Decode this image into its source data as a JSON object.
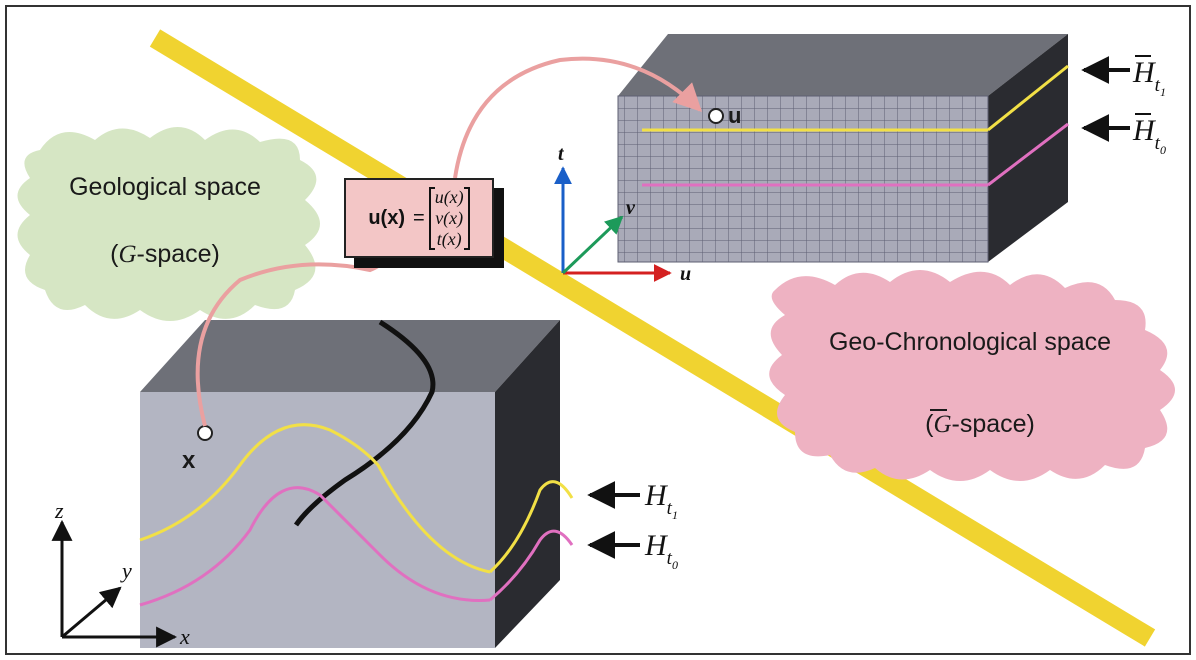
{
  "regions": {
    "geological": {
      "title": "Geological space",
      "subtitle_prefix": "(",
      "subtitle_italic": "G",
      "subtitle_suffix": "-space)"
    },
    "geochronological": {
      "title": "Geo-Chronological space",
      "subtitle_prefix": "(",
      "subtitle_italic": "G",
      "subtitle_suffix": "-space)"
    }
  },
  "equation": {
    "lhs": "u(x)",
    "eq": "=",
    "components": [
      "u(x)",
      "v(x)",
      "t(x)"
    ]
  },
  "points": {
    "x_label": "x",
    "u_label": "u"
  },
  "axes": {
    "g_space": {
      "z": "z",
      "y": "y",
      "x": "x"
    },
    "gbar_space": {
      "t": "t",
      "v": "v",
      "u": "u"
    }
  },
  "horizons": {
    "g_space": [
      {
        "sym": "H",
        "sub": "t",
        "subsub": "1"
      },
      {
        "sym": "H",
        "sub": "t",
        "subsub": "0"
      }
    ],
    "gbar_space": [
      {
        "sym": "H",
        "sub": "t",
        "subsub": "1"
      },
      {
        "sym": "H",
        "sub": "t",
        "subsub": "0"
      }
    ]
  },
  "colors": {
    "divider": "#f0d330",
    "horizon_t1": "#f2e046",
    "horizon_t0": "#e070c0",
    "g_blob": "#d6e6c4",
    "gbar_blob": "#eeb2c2",
    "mapping_arrow": "#eaa0a0",
    "eq_box": "#f3c6c6",
    "axis_t": "#1a5fc8",
    "axis_v": "#1d9a5a",
    "axis_u": "#d42020",
    "x_marker": "#3a9a3a",
    "u_marker": "#f08080"
  }
}
